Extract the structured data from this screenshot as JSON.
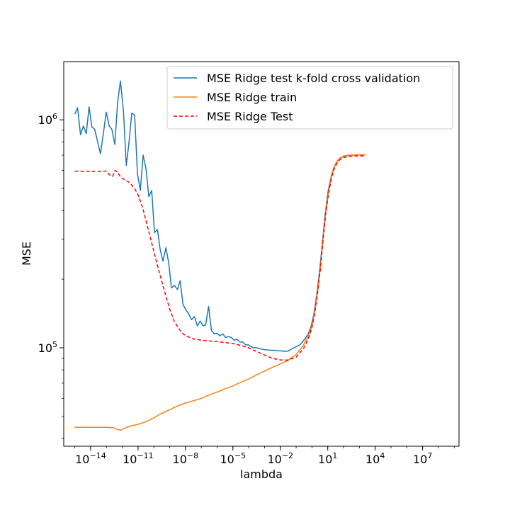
{
  "chart_data": {
    "type": "line",
    "xlabel": "lambda",
    "ylabel": "MSE",
    "xscale": "log",
    "yscale": "log",
    "xlim": [
      2e-16,
      2000000000.0
    ],
    "ylim": [
      37000,
      1800000
    ],
    "grid": false,
    "legend_position": "top-right",
    "x_ticks": [
      {
        "value": 1e-14,
        "base": "10",
        "exp": "−14"
      },
      {
        "value": 1e-11,
        "base": "10",
        "exp": "−11"
      },
      {
        "value": 1e-08,
        "base": "10",
        "exp": "−8"
      },
      {
        "value": 1e-05,
        "base": "10",
        "exp": "−5"
      },
      {
        "value": 0.01,
        "base": "10",
        "exp": "−2"
      },
      {
        "value": 10,
        "base": "10",
        "exp": "1"
      },
      {
        "value": 10000,
        "base": "10",
        "exp": "4"
      },
      {
        "value": 10000000,
        "base": "10",
        "exp": "7"
      }
    ],
    "y_ticks": [
      {
        "value": 100000,
        "base": "10",
        "exp": "5"
      },
      {
        "value": 1000000,
        "base": "10",
        "exp": "6"
      }
    ],
    "series": [
      {
        "name": "MSE Ridge test k-fold cross validation",
        "color": "#1f77b4",
        "dash": "solid",
        "points": [
          [
            1e-15,
            1060000
          ],
          [
            1.5e-15,
            1130000
          ],
          [
            2.3e-15,
            860000
          ],
          [
            3.5e-15,
            940000
          ],
          [
            5.3e-15,
            870000
          ],
          [
            8e-15,
            1140000
          ],
          [
            1.2e-14,
            930000
          ],
          [
            1.8e-14,
            910000
          ],
          [
            2.8e-14,
            800000
          ],
          [
            4.2e-14,
            710000
          ],
          [
            6.4e-14,
            870000
          ],
          [
            9.7e-14,
            1080000
          ],
          [
            1.5e-13,
            940000
          ],
          [
            2.2e-13,
            910000
          ],
          [
            3.4e-13,
            780000
          ],
          [
            5.1e-13,
            1190000
          ],
          [
            7.7e-13,
            1480000
          ],
          [
            1.2e-12,
            1090000
          ],
          [
            1.8e-12,
            630000
          ],
          [
            2.7e-12,
            800000
          ],
          [
            4e-12,
            1070000
          ],
          [
            6.1e-12,
            1050000
          ],
          [
            9.2e-12,
            580000
          ],
          [
            1.4e-11,
            490000
          ],
          [
            2.1e-11,
            700000
          ],
          [
            3.2e-11,
            610000
          ],
          [
            4.8e-11,
            460000
          ],
          [
            7.3e-11,
            490000
          ],
          [
            1.1e-10,
            320000
          ],
          [
            1.7e-10,
            330000
          ],
          [
            2.5e-10,
            270000
          ],
          [
            3.8e-10,
            240000
          ],
          [
            5.8e-10,
            275000
          ],
          [
            8.8e-10,
            235000
          ],
          [
            1.3e-09,
            183000
          ],
          [
            2e-09,
            188000
          ],
          [
            3.1e-09,
            180000
          ],
          [
            4.6e-09,
            197000
          ],
          [
            7e-09,
            155000
          ],
          [
            1.1e-08,
            146000
          ],
          [
            1.6e-08,
            141000
          ],
          [
            2.4e-08,
            133000
          ],
          [
            3.7e-08,
            137000
          ],
          [
            5.6e-08,
            125000
          ],
          [
            8.5e-08,
            131000
          ],
          [
            1.3e-07,
            125000
          ],
          [
            1.9e-07,
            126000
          ],
          [
            2.9e-07,
            152000
          ],
          [
            4.4e-07,
            119000
          ],
          [
            6.7e-07,
            115000
          ],
          [
            1e-06,
            116000
          ],
          [
            1.5e-06,
            113000
          ],
          [
            2.3e-06,
            115000
          ],
          [
            3.5e-06,
            111000
          ],
          [
            5.3e-06,
            112000
          ],
          [
            8e-06,
            111000
          ],
          [
            1.2e-05,
            108000
          ],
          [
            1.8e-05,
            109000
          ],
          [
            2.8e-05,
            106000
          ],
          [
            4.2e-05,
            106000
          ],
          [
            6.4e-05,
            103000
          ],
          [
            9.7e-05,
            103000
          ],
          [
            0.00015,
            101000
          ],
          [
            0.00022,
            100000
          ],
          [
            0.00034,
            100000
          ],
          [
            0.00051,
            99000
          ],
          [
            0.00077,
            98500
          ],
          [
            0.0012,
            98000
          ],
          [
            0.0018,
            97800
          ],
          [
            0.0027,
            97500
          ],
          [
            0.004,
            97500
          ],
          [
            0.0061,
            97200
          ],
          [
            0.0092,
            97000
          ],
          [
            0.014,
            96800
          ],
          [
            0.021,
            96500
          ],
          [
            0.032,
            96800
          ],
          [
            0.048,
            98500
          ],
          [
            0.073,
            100000
          ],
          [
            0.11,
            101500
          ],
          [
            0.17,
            103000
          ],
          [
            0.25,
            106000
          ],
          [
            0.38,
            110000
          ],
          [
            0.58,
            115000
          ],
          [
            0.88,
            124000
          ],
          [
            1.3,
            140000
          ],
          [
            2,
            170000
          ],
          [
            3,
            215000
          ],
          [
            4.6,
            290000
          ],
          [
            7,
            390000
          ],
          [
            10.7,
            490000
          ],
          [
            16,
            560000
          ],
          [
            24.5,
            620000
          ],
          [
            37,
            655000
          ],
          [
            56,
            675000
          ],
          [
            85,
            688000
          ],
          [
            130,
            695000
          ],
          [
            200,
            698000
          ],
          [
            300,
            700000
          ],
          [
            460,
            701000
          ],
          [
            700,
            701500
          ],
          [
            1060,
            702000
          ],
          [
            1600,
            702000
          ],
          [
            2450,
            702000
          ]
        ]
      },
      {
        "name": "MSE Ridge train",
        "color": "#ff7f0e",
        "dash": "solid",
        "points": [
          [
            1e-15,
            44800
          ],
          [
            1e-13,
            44800
          ],
          [
            3e-13,
            44600
          ],
          [
            5e-13,
            43800
          ],
          [
            8e-13,
            43500
          ],
          [
            1.3e-12,
            44300
          ],
          [
            3e-12,
            45300
          ],
          [
            1e-11,
            46200
          ],
          [
            3e-11,
            47300
          ],
          [
            1e-10,
            49300
          ],
          [
            3e-10,
            51500
          ],
          [
            1e-09,
            53500
          ],
          [
            3e-09,
            55500
          ],
          [
            1e-08,
            57300
          ],
          [
            3e-08,
            58500
          ],
          [
            1e-07,
            60000
          ],
          [
            3e-07,
            62000
          ],
          [
            1e-06,
            64000
          ],
          [
            3e-06,
            66000
          ],
          [
            1e-05,
            68000
          ],
          [
            3e-05,
            70500
          ],
          [
            0.0001,
            73000
          ],
          [
            0.0003,
            76000
          ],
          [
            0.001,
            79000
          ],
          [
            0.003,
            82000
          ],
          [
            0.01,
            85000
          ],
          [
            0.03,
            88000
          ],
          [
            0.1,
            93500
          ],
          [
            0.3,
            103000
          ],
          [
            0.6,
            113000
          ],
          [
            1,
            125000
          ],
          [
            1.5,
            145000
          ],
          [
            2.3,
            178000
          ],
          [
            3.5,
            230000
          ],
          [
            5,
            300000
          ],
          [
            7.5,
            395000
          ],
          [
            11,
            480000
          ],
          [
            17,
            565000
          ],
          [
            26,
            625000
          ],
          [
            40,
            660000
          ],
          [
            60,
            680000
          ],
          [
            100,
            693000
          ],
          [
            200,
            700000
          ],
          [
            500,
            702000
          ],
          [
            1000,
            703000
          ],
          [
            2450,
            703000
          ]
        ]
      },
      {
        "name": "MSE Ridge Test",
        "color": "#ff0000",
        "dash": "dashed",
        "points": [
          [
            1e-15,
            595000
          ],
          [
            1e-14,
            595000
          ],
          [
            5e-14,
            594000
          ],
          [
            1e-13,
            596000
          ],
          [
            1.5e-13,
            575000
          ],
          [
            2.5e-13,
            565000
          ],
          [
            3.5e-13,
            600000
          ],
          [
            5e-13,
            590000
          ],
          [
            8e-13,
            560000
          ],
          [
            1.5e-12,
            545000
          ],
          [
            3e-12,
            530000
          ],
          [
            6e-12,
            500000
          ],
          [
            1e-11,
            470000
          ],
          [
            2e-11,
            410000
          ],
          [
            4e-11,
            340000
          ],
          [
            1e-10,
            265000
          ],
          [
            2e-10,
            220000
          ],
          [
            5e-10,
            175000
          ],
          [
            1e-09,
            148000
          ],
          [
            2e-09,
            130000
          ],
          [
            5e-09,
            118000
          ],
          [
            1e-08,
            113000
          ],
          [
            3e-08,
            109500
          ],
          [
            1e-07,
            108000
          ],
          [
            3e-07,
            107200
          ],
          [
            1e-06,
            106500
          ],
          [
            3e-06,
            105500
          ],
          [
            1e-05,
            104500
          ],
          [
            3e-05,
            102500
          ],
          [
            0.0001,
            100000
          ],
          [
            0.0003,
            96500
          ],
          [
            0.001,
            93000
          ],
          [
            0.003,
            90000
          ],
          [
            0.01,
            88500
          ],
          [
            0.03,
            88300
          ],
          [
            0.1,
            91000
          ],
          [
            0.3,
            99500
          ],
          [
            0.6,
            110000
          ],
          [
            1,
            123000
          ],
          [
            1.5,
            142000
          ],
          [
            2.3,
            175000
          ],
          [
            3.5,
            225000
          ],
          [
            5,
            295000
          ],
          [
            7.5,
            390000
          ],
          [
            11,
            470000
          ],
          [
            17,
            555000
          ],
          [
            26,
            612000
          ],
          [
            40,
            648000
          ],
          [
            60,
            670000
          ],
          [
            100,
            683000
          ],
          [
            200,
            691000
          ],
          [
            500,
            694000
          ],
          [
            1000,
            695000
          ],
          [
            2450,
            695000
          ]
        ]
      }
    ]
  }
}
